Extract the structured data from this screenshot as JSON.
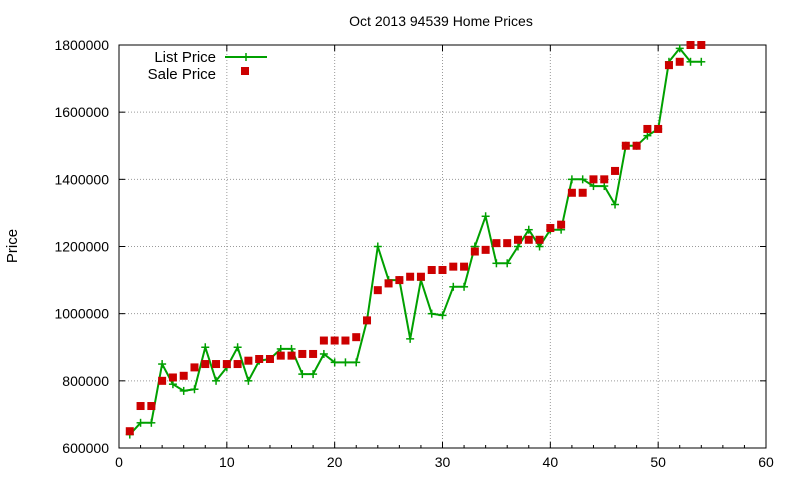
{
  "colors": {
    "list_price": "#00a000",
    "sale_price": "#cc0000",
    "grid": "#9a9a9a",
    "axis": "#000000"
  },
  "chart_data": {
    "type": "line",
    "title": "Oct 2013 94539 Home Prices",
    "xlabel": "",
    "ylabel": "Price",
    "xlim": [
      0,
      60
    ],
    "ylim": [
      600000,
      1800000
    ],
    "x_ticks": [
      0,
      10,
      20,
      30,
      40,
      50,
      60
    ],
    "y_ticks": [
      600000,
      800000,
      1000000,
      1200000,
      1400000,
      1600000,
      1800000
    ],
    "grid": true,
    "legend_position": "top-left",
    "series": [
      {
        "name": "List Price",
        "style": "line-with-plus-markers",
        "x": [
          1,
          2,
          3,
          4,
          5,
          6,
          7,
          8,
          9,
          10,
          11,
          12,
          13,
          14,
          15,
          16,
          17,
          18,
          19,
          20,
          21,
          22,
          23,
          24,
          25,
          26,
          27,
          28,
          29,
          30,
          31,
          32,
          33,
          34,
          35,
          36,
          37,
          38,
          39,
          40,
          41,
          42,
          43,
          44,
          45,
          46,
          47,
          48,
          49,
          50,
          51,
          52,
          53,
          54
        ],
        "y": [
          640000,
          675000,
          675000,
          850000,
          790000,
          770000,
          775000,
          900000,
          800000,
          840000,
          900000,
          800000,
          860000,
          865000,
          895000,
          895000,
          820000,
          820000,
          880000,
          855000,
          855000,
          855000,
          980000,
          1200000,
          1100000,
          1100000,
          925000,
          1100000,
          1000000,
          995000,
          1080000,
          1080000,
          1200000,
          1290000,
          1150000,
          1150000,
          1200000,
          1250000,
          1200000,
          1250000,
          1250000,
          1400000,
          1400000,
          1380000,
          1380000,
          1325000,
          1500000,
          1500000,
          1530000,
          1550000,
          1750000,
          1790000,
          1750000,
          1750000
        ]
      },
      {
        "name": "Sale Price",
        "style": "square-markers",
        "x": [
          1,
          2,
          3,
          4,
          5,
          6,
          7,
          8,
          9,
          10,
          11,
          12,
          13,
          14,
          15,
          16,
          17,
          18,
          19,
          20,
          21,
          22,
          23,
          24,
          25,
          26,
          27,
          28,
          29,
          30,
          31,
          32,
          33,
          34,
          35,
          36,
          37,
          38,
          39,
          40,
          41,
          42,
          43,
          44,
          45,
          46,
          47,
          48,
          49,
          50,
          51,
          52,
          53,
          54
        ],
        "y": [
          650000,
          725000,
          725000,
          800000,
          810000,
          815000,
          840000,
          850000,
          850000,
          850000,
          850000,
          860000,
          865000,
          865000,
          875000,
          875000,
          880000,
          880000,
          920000,
          920000,
          920000,
          930000,
          980000,
          1070000,
          1090000,
          1100000,
          1110000,
          1110000,
          1130000,
          1130000,
          1140000,
          1140000,
          1185000,
          1190000,
          1210000,
          1210000,
          1220000,
          1220000,
          1220000,
          1255000,
          1265000,
          1360000,
          1360000,
          1400000,
          1400000,
          1425000,
          1500000,
          1500000,
          1550000,
          1550000,
          1740000,
          1750000,
          1800000,
          1800000
        ]
      }
    ]
  }
}
